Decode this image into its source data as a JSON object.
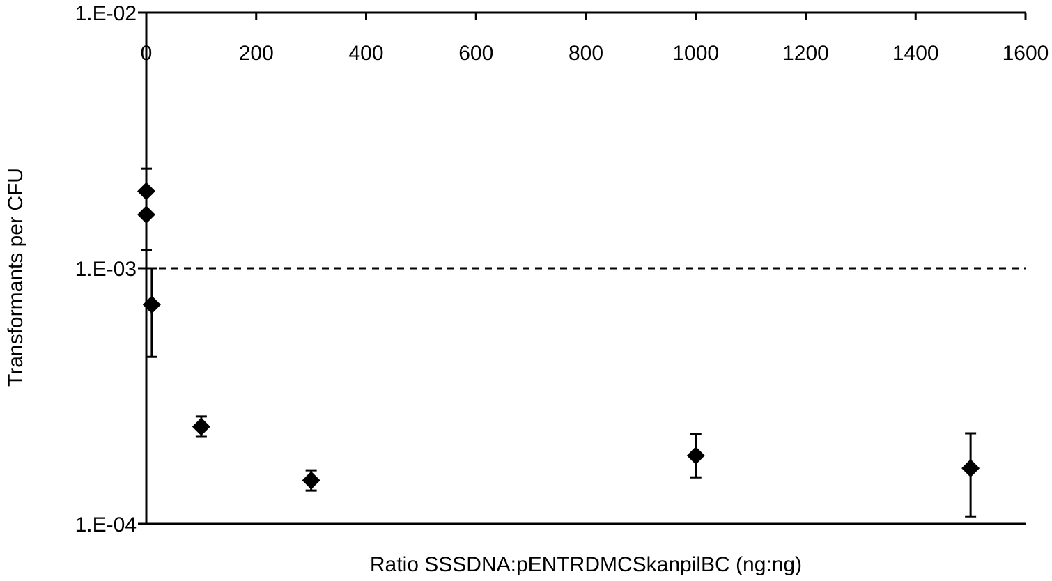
{
  "chart_data": {
    "type": "scatter",
    "title": "",
    "xlabel": "Ratio SSSDNA:pENTRDMCSkanpilBC (ng:ng)",
    "ylabel": "Transformants per CFU",
    "xlim": [
      0,
      1600
    ],
    "ylim": [
      0.0001,
      0.01
    ],
    "yscale": "log",
    "x_ticks": [
      0,
      200,
      400,
      600,
      800,
      1000,
      1200,
      1400,
      1600
    ],
    "x_tick_labels": [
      "0",
      "200",
      "400",
      "600",
      "800",
      "1000",
      "1200",
      "1400",
      "1600"
    ],
    "y_ticks": [
      0.0001,
      0.001,
      0.01
    ],
    "y_tick_labels": [
      "1.E-04",
      "1.E-03",
      "1.E-02"
    ],
    "x_axis_position": "top",
    "grid": false,
    "reference_line": {
      "y": 0.001,
      "style": "dashed"
    },
    "marker": "diamond",
    "color": "#000000",
    "points": [
      {
        "x": 0,
        "y": 0.002,
        "y_low": 0.002,
        "y_high": 0.00245
      },
      {
        "x": 0,
        "y": 0.00162,
        "y_low": 0.00118,
        "y_high": 0.00162
      },
      {
        "x": 10,
        "y": 0.00072,
        "y_low": 0.00045,
        "y_high": 0.001
      },
      {
        "x": 100,
        "y": 0.00024,
        "y_low": 0.000219,
        "y_high": 0.000263
      },
      {
        "x": 300,
        "y": 0.000148,
        "y_low": 0.000135,
        "y_high": 0.000162
      },
      {
        "x": 1000,
        "y": 0.000185,
        "y_low": 0.000152,
        "y_high": 0.000225
      },
      {
        "x": 1500,
        "y": 0.000165,
        "y_low": 0.000107,
        "y_high": 0.000226
      }
    ]
  }
}
